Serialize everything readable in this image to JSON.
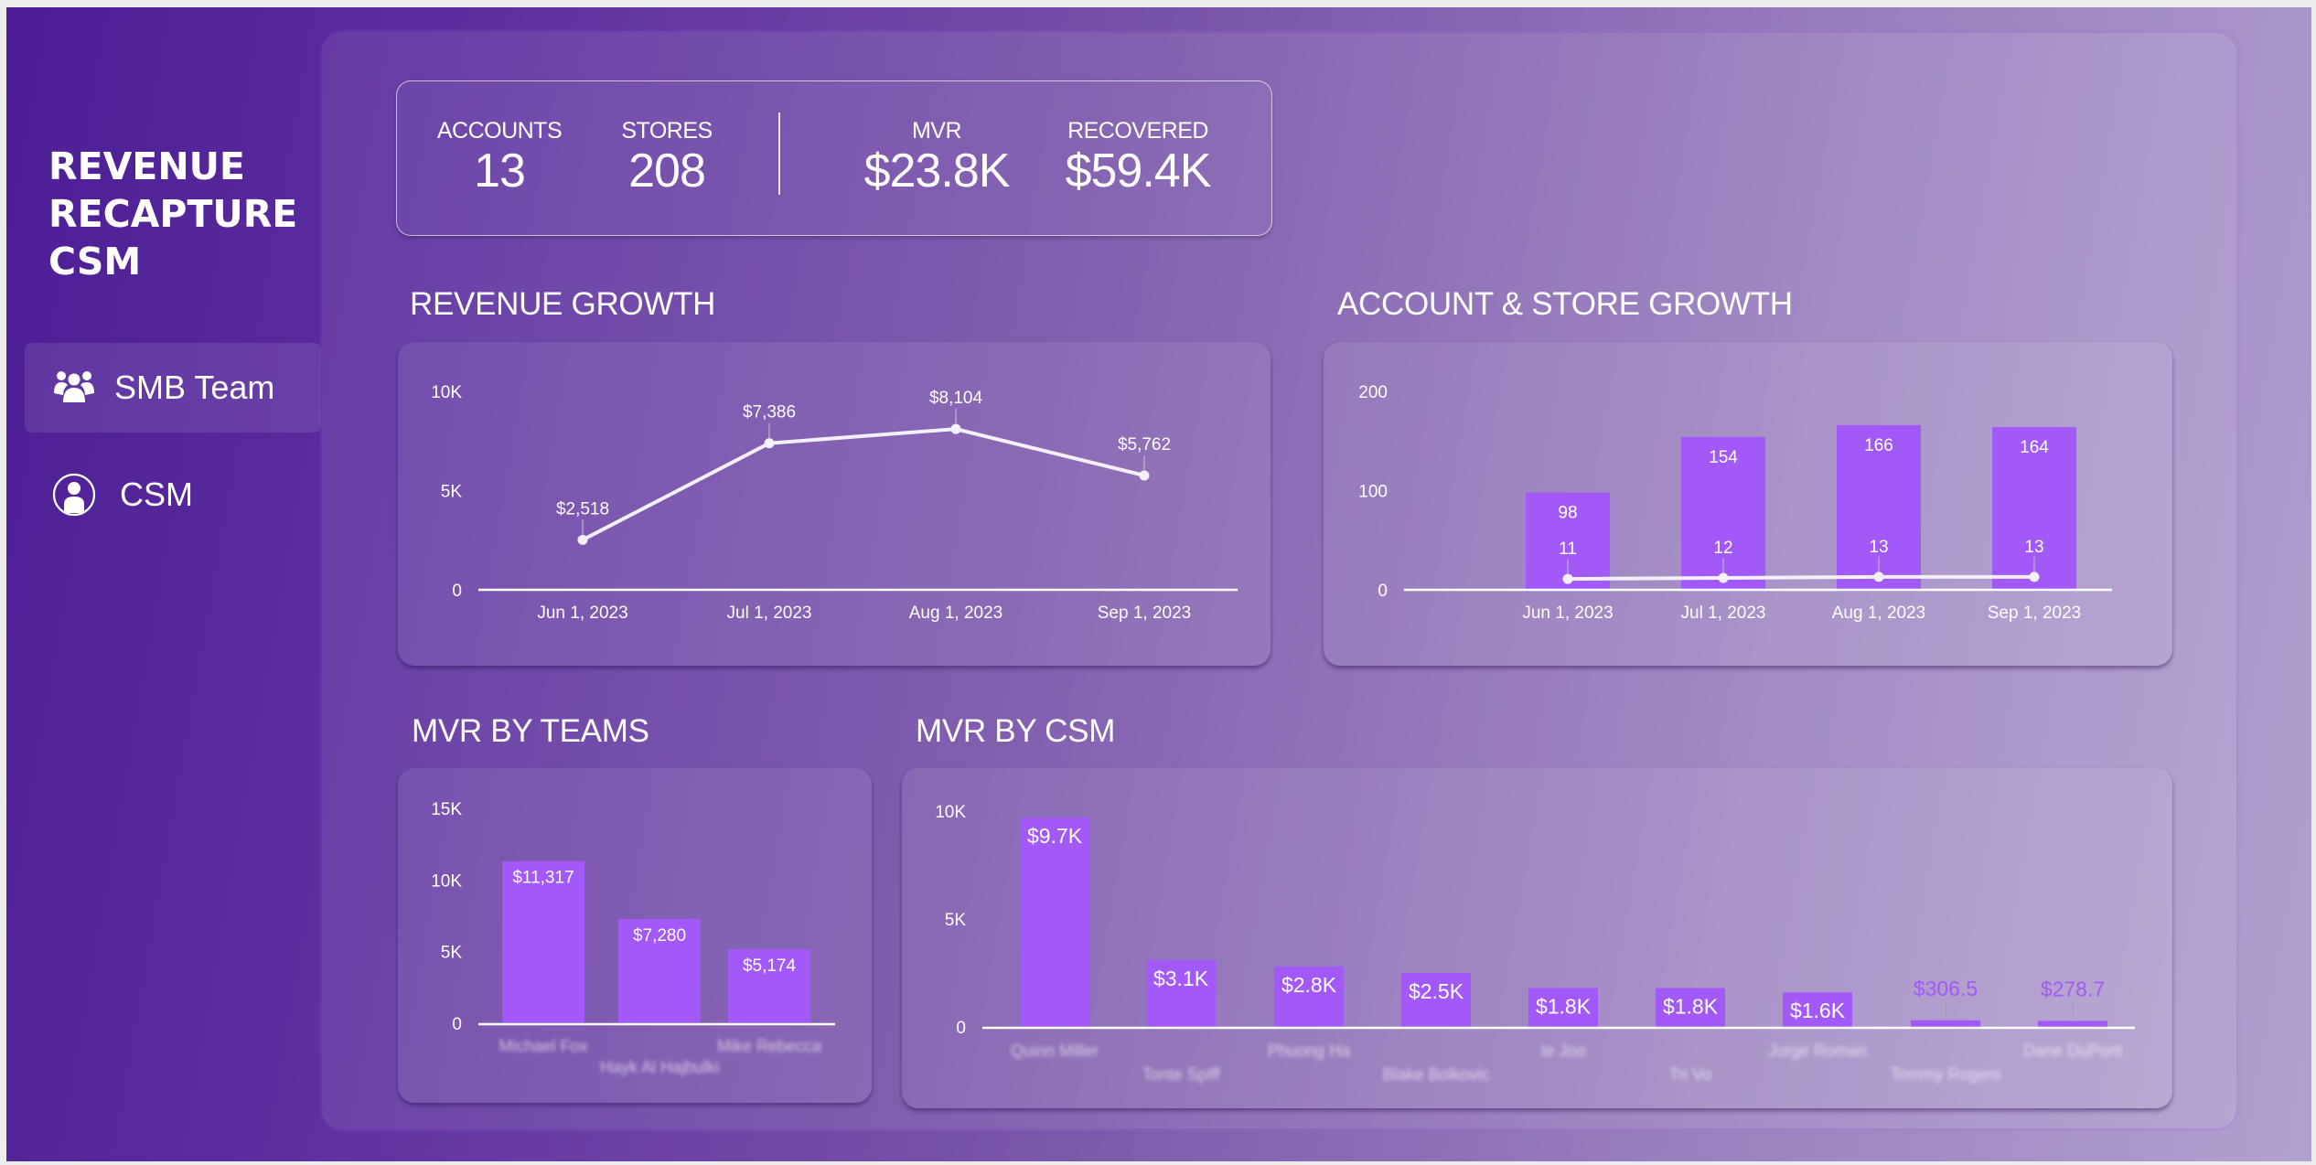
{
  "sidebar": {
    "title_lines": [
      "REVENUE",
      "RECAPTURE",
      "CSM"
    ],
    "items": [
      {
        "label": "SMB Team",
        "icon": "team-icon",
        "active": true
      },
      {
        "label": "CSM",
        "icon": "user-circle-icon",
        "active": false
      }
    ]
  },
  "kpis": {
    "accounts": {
      "label": "ACCOUNTS",
      "value": "13"
    },
    "stores": {
      "label": "STORES",
      "value": "208"
    },
    "mvr": {
      "label": "MVR",
      "value": "$23.8K"
    },
    "recovered": {
      "label": "RECOVERED",
      "value": "$59.4K"
    }
  },
  "sections": {
    "revenue_growth": "REVENUE GROWTH",
    "account_store_growth": "ACCOUNT & STORE GROWTH",
    "mvr_by_teams": "MVR BY TEAMS",
    "mvr_by_csm": "MVR BY CSM"
  },
  "colors": {
    "bar": "#a259f7",
    "line": "#f4f0fa",
    "small_label": "#a259f7"
  },
  "chart_data": [
    {
      "id": "revenue_growth",
      "type": "line",
      "title": "REVENUE GROWTH",
      "categories": [
        "Jun 1, 2023",
        "Jul 1, 2023",
        "Aug 1, 2023",
        "Sep 1, 2023"
      ],
      "values": [
        2518,
        7386,
        8104,
        5762
      ],
      "labels": [
        "$2,518",
        "$7,386",
        "$8,104",
        "$5,762"
      ],
      "yticks": [
        0,
        5000,
        10000
      ],
      "ytick_labels": [
        "0",
        "5K",
        "10K"
      ],
      "ylim": [
        0,
        10000
      ],
      "grid": false
    },
    {
      "id": "account_store_growth",
      "type": "bar",
      "title": "ACCOUNT & STORE GROWTH",
      "categories": [
        "Jun 1, 2023",
        "Jul 1, 2023",
        "Aug 1, 2023",
        "Sep 1, 2023"
      ],
      "series": [
        {
          "name": "Stores",
          "type": "bar",
          "values": [
            98,
            154,
            166,
            164
          ],
          "labels": [
            "98",
            "154",
            "166",
            "164"
          ]
        },
        {
          "name": "Accounts",
          "type": "line",
          "values": [
            11,
            12,
            13,
            13
          ],
          "labels": [
            "11",
            "12",
            "13",
            "13"
          ]
        }
      ],
      "yticks": [
        0,
        100,
        200
      ],
      "ytick_labels": [
        "0",
        "100",
        "200"
      ],
      "ylim": [
        0,
        200
      ],
      "grid": false
    },
    {
      "id": "mvr_by_teams",
      "type": "bar",
      "title": "MVR BY TEAMS",
      "categories": [
        "Michael Fox",
        "Hayk Al Hajbulki",
        "Mike Rebecca"
      ],
      "values": [
        11317,
        7280,
        5174
      ],
      "labels": [
        "$11,317",
        "$7,280",
        "$5,174"
      ],
      "yticks": [
        0,
        5000,
        10000,
        15000
      ],
      "ytick_labels": [
        "0",
        "5K",
        "10K",
        "15K"
      ],
      "ylim": [
        0,
        15000
      ],
      "grid": false
    },
    {
      "id": "mvr_by_csm",
      "type": "bar",
      "title": "MVR BY CSM",
      "categories": [
        "Quinn Miller",
        "Tonte Spiff",
        "Phuong Ha",
        "Blake Bolkovic",
        "Ie Joo",
        "Tri Vo",
        "Jorge Roman",
        "Tommy Rogers",
        "Dane DuPont"
      ],
      "values": [
        9700,
        3100,
        2800,
        2500,
        1800,
        1800,
        1600,
        306.5,
        278.7
      ],
      "labels": [
        "$9.7K",
        "$3.1K",
        "$2.8K",
        "$2.5K",
        "$1.8K",
        "$1.8K",
        "$1.6K",
        "$306.5",
        "$278.7"
      ],
      "yticks": [
        0,
        5000,
        10000
      ],
      "ytick_labels": [
        "0",
        "5K",
        "10K"
      ],
      "ylim": [
        0,
        10000
      ],
      "grid": false
    }
  ]
}
